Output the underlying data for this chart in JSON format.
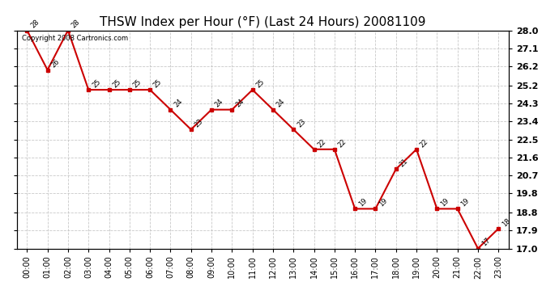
{
  "title": "THSW Index per Hour (°F) (Last 24 Hours) 20081109",
  "x_labels": [
    "00:00",
    "01:00",
    "02:00",
    "03:00",
    "04:00",
    "05:00",
    "06:00",
    "07:00",
    "08:00",
    "09:00",
    "10:00",
    "11:00",
    "12:00",
    "13:00",
    "14:00",
    "15:00",
    "16:00",
    "17:00",
    "18:00",
    "19:00",
    "20:00",
    "21:00",
    "22:00",
    "23:00"
  ],
  "x_values": [
    0,
    1,
    2,
    3,
    4,
    5,
    6,
    7,
    8,
    9,
    10,
    11,
    12,
    13,
    14,
    15,
    16,
    17,
    18,
    19,
    20,
    21,
    22,
    23
  ],
  "y_values": [
    28,
    26,
    28,
    25,
    25,
    25,
    25,
    24,
    23,
    24,
    24,
    25,
    24,
    23,
    22,
    22,
    19,
    19,
    21,
    22,
    19,
    19,
    17,
    18
  ],
  "y_ticks": [
    17.0,
    17.9,
    18.8,
    19.8,
    20.7,
    21.6,
    22.5,
    23.4,
    24.3,
    25.2,
    26.2,
    27.1,
    28.0
  ],
  "ylim": [
    17.0,
    28.0
  ],
  "line_color": "#cc0000",
  "marker_color": "#cc0000",
  "bg_color": "#ffffff",
  "grid_color": "#bbbbbb",
  "copyright_text": "Copyright 2008 Cartronics.com",
  "title_fontsize": 11,
  "tick_fontsize": 7,
  "annotation_fontsize": 6
}
